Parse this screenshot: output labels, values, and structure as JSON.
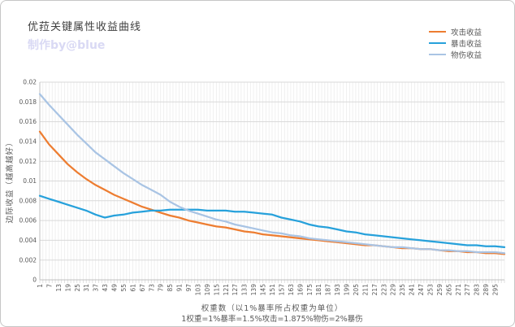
{
  "chart_data": {
    "type": "line",
    "title": "优菈关键属性收益曲线",
    "subtitle": "制作by@blue",
    "xlabel": "权重数（以1%暴率所占权重为单位）",
    "xlabel_line2": "1权重=1%暴率=1.5%攻击=1.875%物伤=2%暴伤",
    "ylabel": "边际收益（越高越好）",
    "xlim": [
      1,
      301
    ],
    "ylim": [
      0,
      0.02
    ],
    "grid": true,
    "legend_position": "top-right",
    "x_ticks": [
      1,
      7,
      13,
      19,
      25,
      31,
      37,
      43,
      49,
      55,
      61,
      67,
      73,
      79,
      85,
      91,
      97,
      103,
      109,
      115,
      121,
      127,
      133,
      139,
      145,
      151,
      157,
      163,
      169,
      175,
      181,
      187,
      193,
      199,
      205,
      211,
      217,
      223,
      229,
      235,
      241,
      247,
      253,
      259,
      265,
      271,
      277,
      283,
      289,
      295
    ],
    "y_ticks": [
      {
        "value": 0,
        "label": "0"
      },
      {
        "value": 0.002,
        "label": "0.002"
      },
      {
        "value": 0.004,
        "label": "0.004"
      },
      {
        "value": 0.006,
        "label": "0.006"
      },
      {
        "value": 0.008,
        "label": "0.008"
      },
      {
        "value": 0.01,
        "label": "0.01"
      },
      {
        "value": 0.012,
        "label": "0.012"
      },
      {
        "value": 0.014,
        "label": "0.014"
      },
      {
        "value": 0.016,
        "label": "0.016"
      },
      {
        "value": 0.018,
        "label": "0.018"
      },
      {
        "value": 0.02,
        "label": "0.02"
      }
    ],
    "x": [
      1,
      7,
      13,
      19,
      25,
      31,
      37,
      43,
      49,
      55,
      61,
      67,
      73,
      79,
      85,
      91,
      97,
      103,
      109,
      115,
      121,
      127,
      133,
      139,
      145,
      151,
      157,
      163,
      169,
      175,
      181,
      187,
      193,
      199,
      205,
      211,
      217,
      223,
      229,
      235,
      241,
      247,
      253,
      259,
      265,
      271,
      277,
      283,
      289,
      295,
      301
    ],
    "series": [
      {
        "id": "attack",
        "name": "攻击收益",
        "color": "#ED7D31",
        "values": [
          0.015,
          0.0137,
          0.0127,
          0.0117,
          0.0109,
          0.0102,
          0.0096,
          0.0091,
          0.0086,
          0.0082,
          0.0078,
          0.0074,
          0.0071,
          0.0068,
          0.0065,
          0.0063,
          0.006,
          0.0058,
          0.0056,
          0.0054,
          0.0053,
          0.0051,
          0.0049,
          0.0048,
          0.0046,
          0.0045,
          0.0044,
          0.0043,
          0.0042,
          0.0041,
          0.004,
          0.0039,
          0.0038,
          0.0037,
          0.0036,
          0.0035,
          0.0035,
          0.0034,
          0.0033,
          0.0032,
          0.0032,
          0.0031,
          0.0031,
          0.003,
          0.0029,
          0.0029,
          0.0028,
          0.0028,
          0.0027,
          0.0027,
          0.0026
        ]
      },
      {
        "id": "crit",
        "name": "暴击收益",
        "color": "#27A1DB",
        "values": [
          0.0085,
          0.0082,
          0.0079,
          0.0076,
          0.0073,
          0.007,
          0.0066,
          0.0063,
          0.0065,
          0.0066,
          0.0068,
          0.0069,
          0.007,
          0.007,
          0.0071,
          0.0071,
          0.0071,
          0.0071,
          0.007,
          0.007,
          0.007,
          0.0069,
          0.0069,
          0.0068,
          0.0067,
          0.0066,
          0.0063,
          0.0061,
          0.0059,
          0.0056,
          0.0054,
          0.0053,
          0.0051,
          0.0049,
          0.0048,
          0.0046,
          0.0045,
          0.0044,
          0.0043,
          0.0042,
          0.0041,
          0.004,
          0.0039,
          0.0038,
          0.0037,
          0.0036,
          0.0035,
          0.0035,
          0.0034,
          0.0034,
          0.0033
        ]
      },
      {
        "id": "phys",
        "name": "物伤收益",
        "color": "#A9C4E4",
        "values": [
          0.0188,
          0.0177,
          0.0167,
          0.0157,
          0.0147,
          0.0138,
          0.0129,
          0.0122,
          0.0115,
          0.0108,
          0.0102,
          0.0096,
          0.0091,
          0.0086,
          0.0079,
          0.0074,
          0.007,
          0.0067,
          0.0064,
          0.0061,
          0.0059,
          0.0056,
          0.0054,
          0.0052,
          0.005,
          0.0048,
          0.0047,
          0.0045,
          0.0044,
          0.0042,
          0.0041,
          0.004,
          0.0039,
          0.0038,
          0.0037,
          0.0036,
          0.0035,
          0.0034,
          0.0033,
          0.0033,
          0.0032,
          0.0031,
          0.0031,
          0.003,
          0.003,
          0.0029,
          0.0029,
          0.0028,
          0.0028,
          0.0028,
          0.0027
        ]
      }
    ],
    "colors": {
      "grid_major": "#D9D9D9",
      "grid_minor": "#ECECEC",
      "axis": "#C0C0C0",
      "tick_text": "#595959",
      "title_text": "#404040",
      "subtitle_text": "#D9D9F4",
      "border": "#C6C6C6"
    }
  }
}
